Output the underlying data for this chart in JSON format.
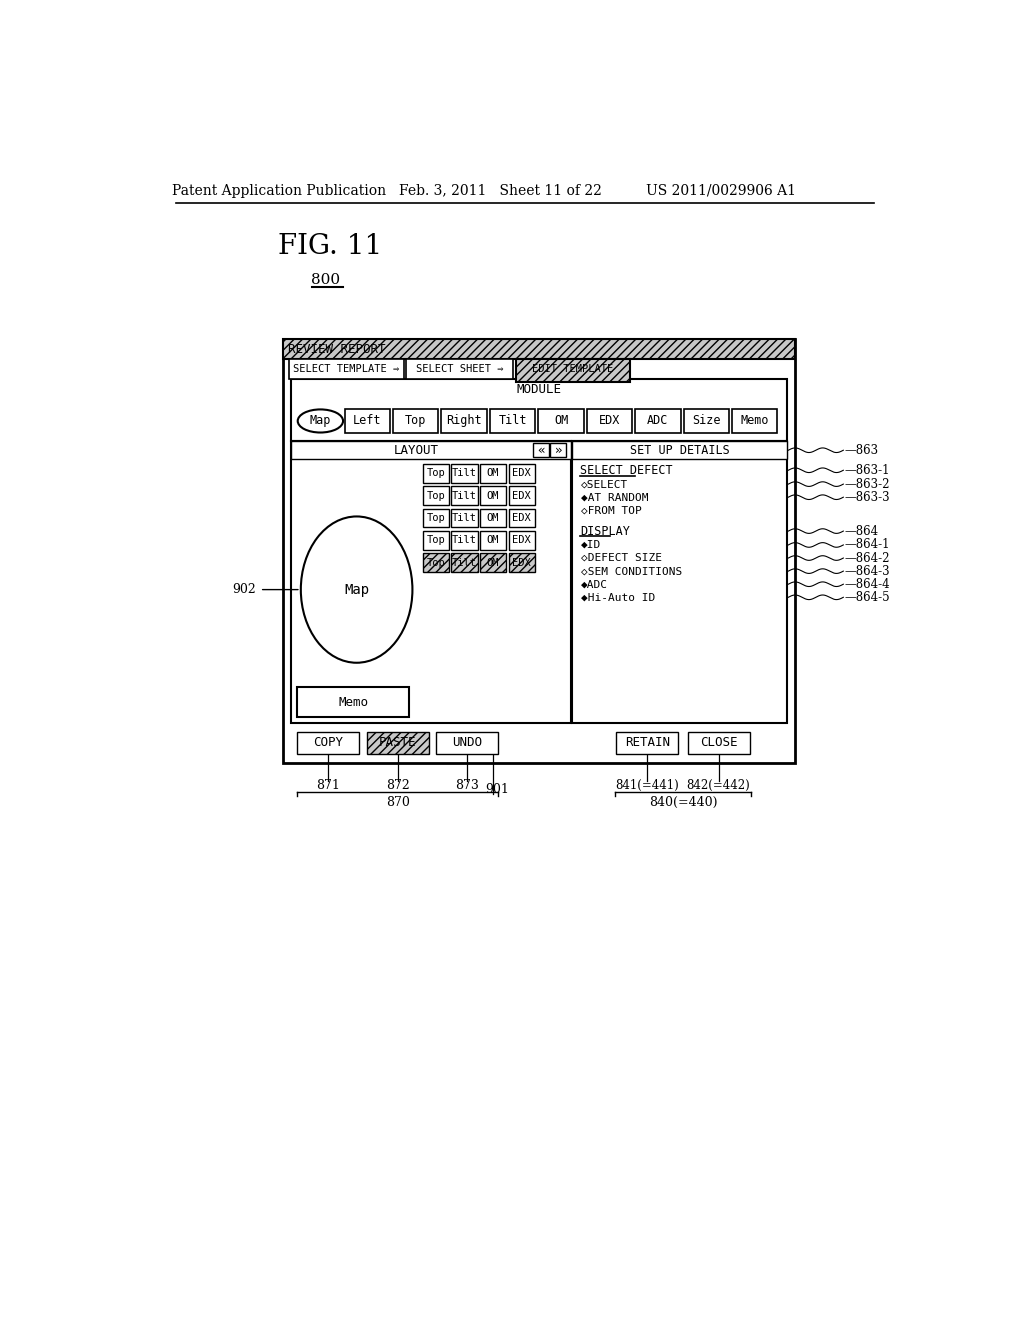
{
  "header_left": "Patent Application Publication",
  "header_center": "Feb. 3, 2011   Sheet 11 of 22",
  "header_right": "US 2011/0029906 A1",
  "fig_label": "FIG. 11",
  "fig_number": "800",
  "title_bar": "REVIEW REPORT",
  "tab1": "SELECT TEMPLATE ⇒",
  "tab2": "SELECT SHEET ⇒",
  "tab3": "EDIT TEMPLATE",
  "module_label": "MODULE",
  "module_buttons": [
    "Map",
    "Left",
    "Top",
    "Right",
    "Tilt",
    "OM",
    "EDX",
    "ADC",
    "Size",
    "Memo"
  ],
  "layout_label": "LAYOUT",
  "setup_label": "SET UP DETAILS",
  "layout_row_buttons": [
    "Top",
    "Tilt",
    "OM",
    "EDX"
  ],
  "select_defect_label": "SELECT DEFECT",
  "select_defect_items": [
    "◇SELECT",
    "◆AT RANDOM",
    "◇FROM TOP"
  ],
  "display_label": "DISPLAY",
  "display_items": [
    "◆ID",
    "◇DEFECT SIZE",
    "◇SEM CONDITIONS",
    "◆ADC",
    "◆Hi-Auto ID"
  ],
  "bottom_buttons_left": [
    "COPY",
    "PASTE",
    "UNDO"
  ],
  "bottom_buttons_right": [
    "RETAIN",
    "CLOSE"
  ],
  "label_902": "902",
  "label_870": "870",
  "label_871": "871",
  "label_872": "872",
  "label_873": "873",
  "label_901": "901",
  "label_840": "840(=440)",
  "label_841": "841(=441)",
  "label_842": "842(=442)",
  "bg_color": "#ffffff"
}
